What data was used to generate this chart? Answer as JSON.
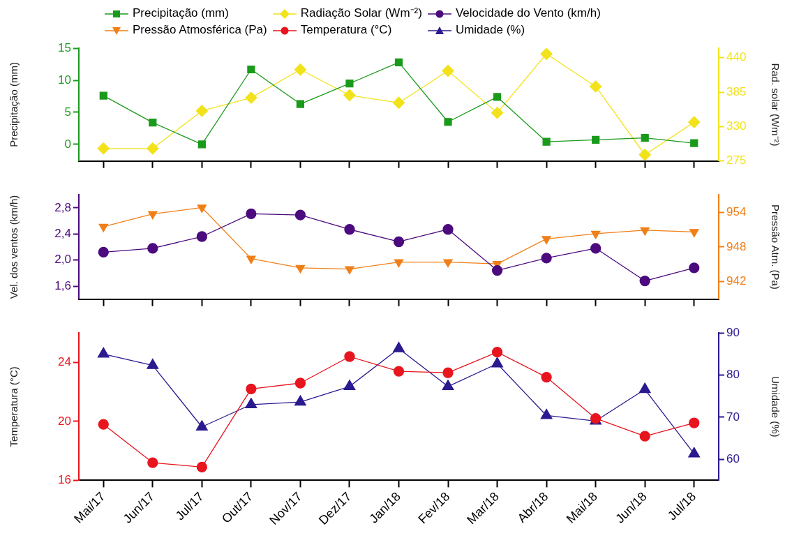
{
  "chart_data": [
    {
      "type": "line",
      "categories": [
        null,
        null,
        null,
        null,
        null,
        null,
        null,
        null,
        null,
        null,
        null,
        null,
        null
      ],
      "ylabel": "Precipitação (mm)",
      "y2label": "Rad. solar (Wm⁻²)",
      "ylim": [
        -2.6,
        15
      ],
      "yticks": [
        0,
        5,
        10,
        15
      ],
      "y2lim": [
        275,
        455
      ],
      "y2ticks": [
        275,
        330,
        385,
        440
      ],
      "legend": "top",
      "series": [
        {
          "name": "Precipitação (mm)",
          "color": "#1a9a1a",
          "marker": "square",
          "axis": "y",
          "values": [
            7.6,
            3.4,
            0,
            11.7,
            6.3,
            9.5,
            12.8,
            3.5,
            7.4,
            0.4,
            0.7,
            1.0,
            0.2
          ]
        },
        {
          "name": "Radiação Solar (Wm⁻²)",
          "color": "#f2e21c",
          "marker": "diamond",
          "axis": "y2",
          "values": [
            295,
            295,
            355,
            376,
            421,
            380,
            368,
            419,
            352,
            446,
            394,
            285,
            337
          ]
        }
      ]
    },
    {
      "type": "line",
      "categories": [
        null,
        null,
        null,
        null,
        null,
        null,
        null,
        null,
        null,
        null,
        null,
        null,
        null
      ],
      "ylabel": "Vel. dos ventos (km/h)",
      "y2label": "Pressão Atm. (Pa)",
      "ylim": [
        1.4,
        3.0
      ],
      "yticks": [
        {
          "value": 1.6,
          "label": "1,6"
        },
        {
          "value": 2.0,
          "label": "2,0"
        },
        {
          "value": 2.4,
          "label": "2,4"
        },
        {
          "value": 2.8,
          "label": "2,8"
        }
      ],
      "y2lim": [
        939,
        957
      ],
      "y2ticks": [
        942,
        948,
        954
      ],
      "legend": "top",
      "series": [
        {
          "name": "Velocidade do Vento (km/h)",
          "color": "#4b0a7d",
          "marker": "circle",
          "axis": "y",
          "values": [
            2.12,
            2.18,
            2.36,
            2.71,
            2.69,
            2.47,
            2.28,
            2.47,
            1.84,
            2.03,
            2.18,
            1.68,
            1.88
          ]
        },
        {
          "name": "Pressão Atmosférica (Pa)",
          "color": "#f07f17",
          "marker": "triangle-down",
          "axis": "y2",
          "values": [
            951.5,
            953.7,
            954.8,
            946.0,
            944.4,
            944.2,
            945.4,
            945.4,
            945.1,
            949.4,
            950.3,
            950.9,
            950.6
          ]
        }
      ]
    },
    {
      "type": "line",
      "categories": [
        "Mai/17",
        "Jun/17",
        "Jul/17",
        "Out/17",
        "Nov/17",
        "Dez/17",
        "Jan/18",
        "Fev/18",
        "Mar/18",
        "Abr/18",
        "Mai/18",
        "Jun/18",
        "Jul/18"
      ],
      "ylabel": "Temperatura (°C)",
      "y2label": "Umidade (%)",
      "ylim": [
        16,
        26
      ],
      "yticks": [
        16,
        20,
        24
      ],
      "y2lim": [
        55,
        90
      ],
      "y2ticks": [
        60,
        70,
        80,
        90
      ],
      "legend": "top",
      "series": [
        {
          "name": "Temperatura (°C)",
          "color": "#e8141e",
          "marker": "circle",
          "axis": "y",
          "values": [
            19.8,
            17.2,
            16.9,
            22.2,
            22.6,
            24.4,
            23.4,
            23.3,
            24.7,
            23.0,
            20.2,
            19.0,
            19.9
          ]
        },
        {
          "name": "Umidade (%)",
          "color": "#2a1a8f",
          "marker": "triangle",
          "axis": "y2",
          "values": [
            85,
            82.3,
            67.7,
            73,
            73.6,
            77.3,
            86.3,
            77.3,
            82.7,
            70.4,
            69.1,
            76.6,
            61.3
          ]
        }
      ]
    }
  ]
}
